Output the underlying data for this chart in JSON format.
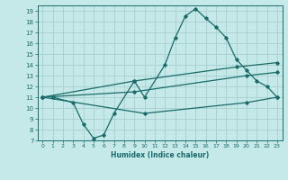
{
  "xlabel": "Humidex (Indice chaleur)",
  "bg_color": "#c5e8e8",
  "line_color": "#1a6b6b",
  "grid_color": "#a8d0d0",
  "xlim": [
    -0.5,
    23.5
  ],
  "ylim": [
    7,
    19.5
  ],
  "xticks": [
    0,
    1,
    2,
    3,
    4,
    5,
    6,
    7,
    8,
    9,
    10,
    11,
    12,
    13,
    14,
    15,
    16,
    17,
    18,
    19,
    20,
    21,
    22,
    23
  ],
  "yticks": [
    7,
    8,
    9,
    10,
    11,
    12,
    13,
    14,
    15,
    16,
    17,
    18,
    19
  ],
  "line1_x": [
    1,
    3,
    4,
    5,
    6,
    7,
    9,
    10,
    12,
    13,
    14,
    15,
    16,
    17,
    18,
    19,
    20,
    21,
    22,
    23
  ],
  "line1_y": [
    11,
    10.5,
    8.5,
    7.2,
    7.5,
    9.5,
    12.5,
    11.0,
    14.0,
    16.5,
    18.5,
    19.2,
    18.3,
    17.5,
    16.5,
    14.5,
    13.5,
    12.5,
    12.0,
    11.0
  ],
  "line2_x": [
    0,
    9,
    19,
    23
  ],
  "line2_y": [
    11.0,
    12.5,
    13.8,
    14.2
  ],
  "line3_x": [
    0,
    9,
    20,
    23
  ],
  "line3_y": [
    11.0,
    11.5,
    13.0,
    13.3
  ],
  "line4_x": [
    0,
    10,
    20,
    23
  ],
  "line4_y": [
    11.0,
    9.5,
    10.5,
    11.0
  ]
}
